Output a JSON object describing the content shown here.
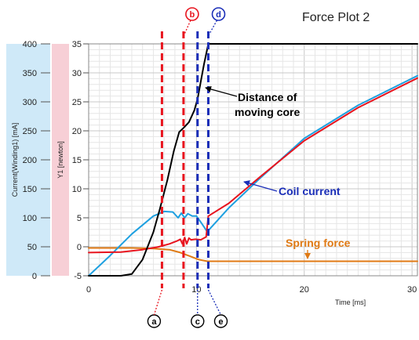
{
  "chart_data": {
    "type": "line",
    "title": "Force Plot 2",
    "xlabel": "Time [ms]",
    "x_ticks": [
      "0",
      "10",
      "20",
      "30"
    ],
    "xlim": [
      0,
      30.5
    ],
    "left_axis": {
      "label": "Current(Winding1) [mA]",
      "ticks": [
        "0",
        "50",
        "100",
        "150",
        "200",
        "250",
        "300",
        "350",
        "400"
      ],
      "ylim": [
        0,
        400
      ],
      "band_color": "#cfe9f8"
    },
    "right_axis": {
      "label": "Y1 [newton]",
      "ticks": [
        "-5",
        "0",
        "5",
        "10",
        "15",
        "20",
        "25",
        "30",
        "35"
      ],
      "ylim": [
        -5,
        35
      ],
      "band_color": "#f7cfd6"
    },
    "grid": true,
    "series": [
      {
        "name": "Distance of moving core",
        "axis": "Y1",
        "color": "#000000",
        "x": [
          0,
          3,
          4,
          5,
          6,
          6.6,
          7.3,
          7.9,
          8.4,
          8.8,
          9.3,
          9.8,
          10.1,
          10.4,
          10.7,
          11.1,
          30.5
        ],
        "y": [
          -5,
          -5,
          -4.7,
          -2.2,
          2.5,
          6.5,
          11.5,
          16.5,
          19.8,
          20.5,
          21.5,
          23.5,
          25.5,
          28.5,
          31.5,
          35,
          35
        ]
      },
      {
        "name": "Coil current",
        "axis": "Current",
        "color": "#1ea0e0",
        "x": [
          0,
          2,
          4,
          6,
          7,
          7.8,
          8.3,
          8.6,
          8.9,
          9.2,
          9.6,
          10,
          10.5,
          11,
          13,
          16,
          20,
          25,
          30.5
        ],
        "y": [
          0,
          35,
          72,
          103,
          111,
          110,
          100,
          108,
          100,
          107,
          103,
          103,
          90,
          76,
          117,
          170,
          237,
          294,
          345
        ]
      },
      {
        "name": "Coil current (red)",
        "axis": "Current",
        "color": "#e8141e",
        "x": [
          0,
          3,
          5,
          6.5,
          7.5,
          8.2,
          8.5,
          8.7,
          8.9,
          9.1,
          9.3,
          9.5,
          9.9,
          10.4,
          10.9,
          11.1,
          13,
          16,
          20,
          25,
          30.5
        ],
        "y": [
          40,
          41,
          45,
          50,
          55,
          60,
          63,
          55,
          66,
          55,
          65,
          62,
          63,
          62,
          67,
          103,
          125,
          172,
          233,
          290,
          341
        ]
      },
      {
        "name": "Spring force",
        "axis": "Y1",
        "color": "#e07a14",
        "x": [
          0,
          4,
          6,
          7.5,
          8.5,
          9.5,
          10.2,
          11,
          30.5
        ],
        "y": [
          -0.2,
          -0.2,
          -0.3,
          -0.5,
          -1,
          -1.7,
          -2.2,
          -2.5,
          -2.5
        ]
      }
    ],
    "vertical_markers": [
      {
        "label": "a",
        "x": 6.8,
        "color": "#e8141e",
        "position": "bottom"
      },
      {
        "label": "b",
        "x": 8.8,
        "color": "#e8141e",
        "position": "top"
      },
      {
        "label": "c",
        "x": 10.1,
        "color": "#1a2eb8",
        "position": "bottom"
      },
      {
        "label": "d",
        "x": 11.1,
        "color": "#1a2eb8",
        "position": "top"
      },
      {
        "label": "e",
        "x": 11.1,
        "color": "#1a2eb8",
        "position": "bottom"
      }
    ],
    "annotations": [
      {
        "line1": "Distance of",
        "line2": "moving core",
        "color": "#000000"
      },
      {
        "line1": "Coil current",
        "color": "#1a2eb8"
      },
      {
        "line1": "Spring force",
        "color": "#e07a14"
      }
    ]
  }
}
